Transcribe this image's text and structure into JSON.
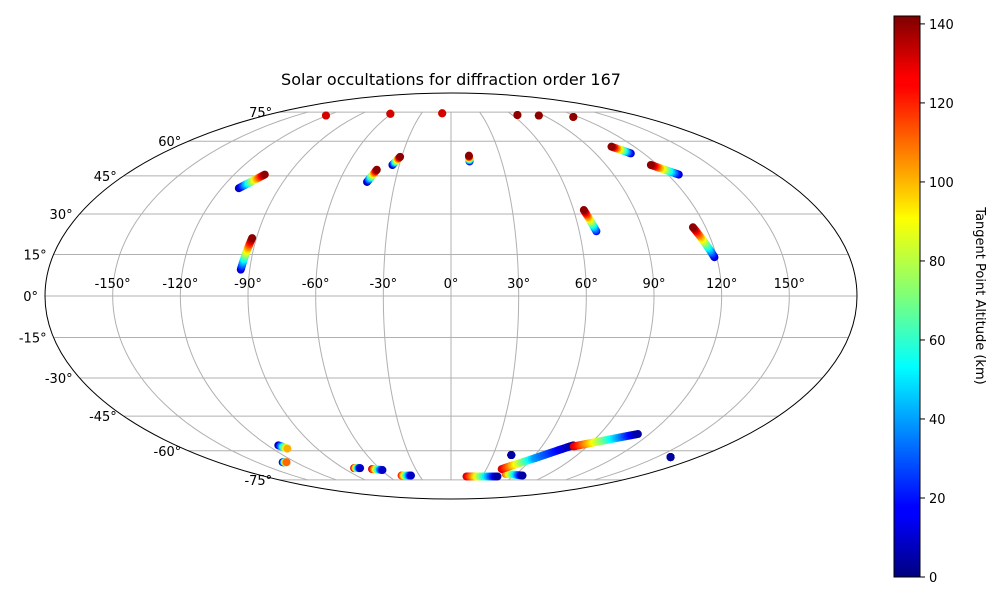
{
  "chart_data": {
    "type": "scatter",
    "projection": "mollweide",
    "title": "Solar occultations for diffraction order 167",
    "lon_tick_labels": [
      "-150°",
      "-120°",
      "-90°",
      "-60°",
      "-30°",
      "0°",
      "30°",
      "60°",
      "90°",
      "120°",
      "150°"
    ],
    "lon_ticks": [
      -150,
      -120,
      -90,
      -60,
      -30,
      0,
      30,
      60,
      90,
      120,
      150
    ],
    "lat_tick_labels": [
      "-75°",
      "-60°",
      "-45°",
      "-30°",
      "-15°",
      "0°",
      "15°",
      "30°",
      "45°",
      "60°",
      "75°"
    ],
    "lat_ticks": [
      -75,
      -60,
      -45,
      -30,
      -15,
      0,
      15,
      30,
      45,
      60,
      75
    ],
    "grid": true,
    "colorbar": {
      "label": "Tangent Point Altitude (km)",
      "range": [
        0,
        142
      ],
      "ticks": [
        0,
        20,
        40,
        60,
        80,
        100,
        120,
        140
      ],
      "tick_labels": [
        "0",
        "20",
        "40",
        "60",
        "80",
        "100",
        "120",
        "140"
      ],
      "colormap": "jet"
    },
    "tracks": [
      {
        "lon_start": -121,
        "lat_start": 73.0,
        "lon_end": -121,
        "lat_end": 73.0,
        "alt_start": 0,
        "alt_end": 130
      },
      {
        "lon_start": -61,
        "lat_start": 74.0,
        "lon_end": -61,
        "lat_end": 74.0,
        "alt_start": 0,
        "alt_end": 130
      },
      {
        "lon_start": -9,
        "lat_start": 74.3,
        "lon_end": -9,
        "lat_end": 74.3,
        "alt_start": 0,
        "alt_end": 130
      },
      {
        "lon_start": 65,
        "lat_start": 73.3,
        "lon_end": 65,
        "lat_end": 73.3,
        "alt_start": 10,
        "alt_end": 140
      },
      {
        "lon_start": 85,
        "lat_start": 73.0,
        "lon_end": 85,
        "lat_end": 73.0,
        "alt_start": 10,
        "alt_end": 140
      },
      {
        "lon_start": 115,
        "lat_start": 72.2,
        "lon_end": 115,
        "lat_end": 72.2,
        "alt_start": 10,
        "alt_end": 140
      },
      {
        "lon_start": -111,
        "lat_start": 40.0,
        "lon_end": -103,
        "lat_end": 45.5,
        "alt_start": 5,
        "alt_end": 140
      },
      {
        "lon_start": -45,
        "lat_start": 42.5,
        "lon_end": -42,
        "lat_end": 47.5,
        "alt_start": 5,
        "alt_end": 140
      },
      {
        "lon_start": -34,
        "lat_start": 49.5,
        "lon_end": -31,
        "lat_end": 53.0,
        "alt_start": 5,
        "alt_end": 140
      },
      {
        "lon_start": 11,
        "lat_start": 51.0,
        "lon_end": 11,
        "lat_end": 53.5,
        "alt_start": 10,
        "alt_end": 140
      },
      {
        "lon_start": 112,
        "lat_start": 54.5,
        "lon_end": 105,
        "lat_end": 57.5,
        "alt_start": 10,
        "alt_end": 140
      },
      {
        "lon_start": 126,
        "lat_start": 45.5,
        "lon_end": 116,
        "lat_end": 49.5,
        "alt_start": 10,
        "alt_end": 140
      },
      {
        "lon_start": -94,
        "lat_start": 9.5,
        "lon_end": -92,
        "lat_end": 21.0,
        "alt_start": 10,
        "alt_end": 140
      },
      {
        "lon_start": 68,
        "lat_start": 23.5,
        "lon_end": 65,
        "lat_end": 31.5,
        "alt_start": 20,
        "alt_end": 140
      },
      {
        "lon_start": 119,
        "lat_start": 14.0,
        "lon_end": 114,
        "lat_end": 25.0,
        "alt_start": 10,
        "alt_end": 140
      },
      {
        "lon_start": -113,
        "lat_start": -57.5,
        "lon_end": -110,
        "lat_end": -59.0,
        "alt_start": 5,
        "alt_end": 100
      },
      {
        "lon_start": -130,
        "lat_start": -65.5,
        "lon_end": -127,
        "lat_end": -65.5,
        "alt_start": 0,
        "alt_end": 110
      },
      {
        "lon_start": -81,
        "lat_start": -68.5,
        "lon_end": -76,
        "lat_end": -68.5,
        "alt_start": 130,
        "alt_end": 10
      },
      {
        "lon_start": -67,
        "lat_start": -69.0,
        "lon_end": -59,
        "lat_end": -69.5,
        "alt_start": 130,
        "alt_end": 10
      },
      {
        "lon_start": -47,
        "lat_start": -72.5,
        "lon_end": -38,
        "lat_end": -72.5,
        "alt_start": 120,
        "alt_end": 10
      },
      {
        "lon_start": 15,
        "lat_start": -73.0,
        "lon_end": 45,
        "lat_end": -73.0,
        "alt_start": 130,
        "alt_end": 5
      },
      {
        "lon_start": 50,
        "lat_start": -71.5,
        "lon_end": 68,
        "lat_end": -72.5,
        "alt_start": 110,
        "alt_end": 5
      },
      {
        "lon_start": 43,
        "lat_start": -69.0,
        "lon_end": 62,
        "lat_end": -63.5,
        "alt_start": 130,
        "alt_end": 40
      },
      {
        "lon_start": 62,
        "lat_start": -63.5,
        "lon_end": 80,
        "lat_end": -57.5,
        "alt_start": 40,
        "alt_end": 5
      },
      {
        "lon_start": 81,
        "lat_start": -58.0,
        "lon_end": 113,
        "lat_end": -52.5,
        "alt_start": 130,
        "alt_end": 5
      },
      {
        "lon_start": 43,
        "lat_start": -62.0,
        "lon_end": 43,
        "lat_end": -62.0,
        "alt_start": 5,
        "alt_end": 5
      },
      {
        "lon_start": 160,
        "lat_start": -63.0,
        "lon_end": 160,
        "lat_end": -63.0,
        "alt_start": 5,
        "alt_end": 5
      }
    ]
  }
}
